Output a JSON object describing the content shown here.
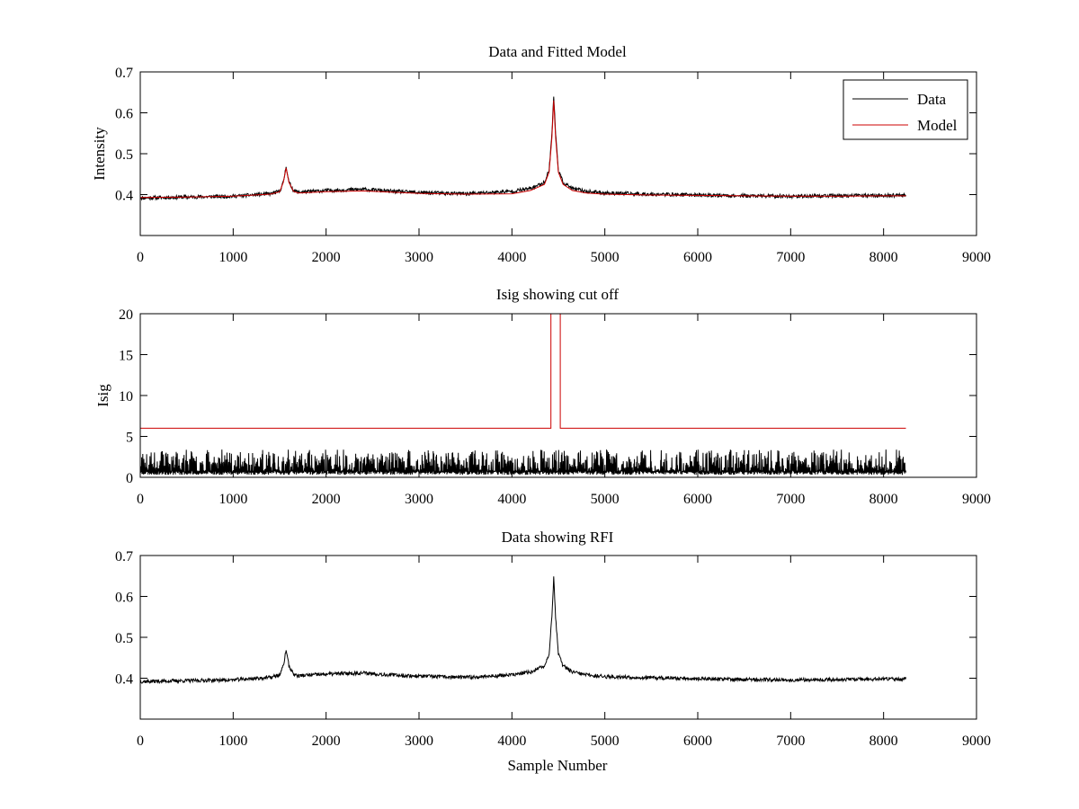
{
  "chart_data": [
    {
      "type": "line",
      "title": "Data and Fitted Model",
      "xlabel": "",
      "ylabel": "Intensity",
      "xlim": [
        0,
        9000
      ],
      "ylim": [
        0.3,
        0.7
      ],
      "x_ticks": [
        "0",
        "1000",
        "2000",
        "3000",
        "4000",
        "5000",
        "6000",
        "7000",
        "8000",
        "9000"
      ],
      "y_ticks": [
        "0.4",
        "0.5",
        "0.6",
        "0.7"
      ],
      "x_tick_values": [
        0,
        1000,
        2000,
        3000,
        4000,
        5000,
        6000,
        7000,
        8000,
        9000
      ],
      "y_tick_values": [
        0.4,
        0.5,
        0.6,
        0.7
      ],
      "legend": {
        "position": "top-right",
        "entries": [
          "Data",
          "Model"
        ]
      },
      "series": [
        {
          "name": "Data",
          "color": "#000000",
          "noisy": true,
          "noise": 0.0045,
          "seed": 11,
          "x": [
            0,
            500,
            1000,
            1400,
            1500,
            1540,
            1570,
            1600,
            1650,
            1700,
            2000,
            2400,
            2700,
            3000,
            3500,
            4000,
            4200,
            4350,
            4400,
            4430,
            4450,
            4470,
            4500,
            4550,
            4650,
            4800,
            5000,
            5500,
            6000,
            6500,
            7000,
            7500,
            8000,
            8240
          ],
          "y": [
            0.392,
            0.394,
            0.396,
            0.402,
            0.408,
            0.43,
            0.47,
            0.43,
            0.41,
            0.406,
            0.41,
            0.413,
            0.408,
            0.405,
            0.402,
            0.408,
            0.415,
            0.43,
            0.46,
            0.55,
            0.64,
            0.55,
            0.46,
            0.43,
            0.415,
            0.408,
            0.404,
            0.401,
            0.399,
            0.397,
            0.396,
            0.397,
            0.398,
            0.398
          ]
        },
        {
          "name": "Model",
          "color": "#cc0000",
          "noisy": false,
          "x": [
            0,
            500,
            1000,
            1400,
            1500,
            1540,
            1570,
            1600,
            1650,
            1700,
            2000,
            2400,
            2700,
            3000,
            3500,
            4000,
            4200,
            4350,
            4400,
            4430,
            4450,
            4470,
            4500,
            4550,
            4650,
            4800,
            5000,
            5500,
            6000,
            6500,
            7000,
            7500,
            8000,
            8240
          ],
          "y": [
            0.393,
            0.394,
            0.396,
            0.401,
            0.407,
            0.43,
            0.465,
            0.43,
            0.408,
            0.404,
            0.407,
            0.409,
            0.406,
            0.403,
            0.401,
            0.402,
            0.41,
            0.425,
            0.455,
            0.54,
            0.63,
            0.54,
            0.455,
            0.425,
            0.41,
            0.404,
            0.401,
            0.399,
            0.398,
            0.397,
            0.396,
            0.396,
            0.397,
            0.397
          ]
        }
      ]
    },
    {
      "type": "line",
      "title": "Isig showing cut off",
      "xlabel": "",
      "ylabel": "Isig",
      "xlim": [
        0,
        9000
      ],
      "ylim": [
        0,
        20
      ],
      "x_ticks": [
        "0",
        "1000",
        "2000",
        "3000",
        "4000",
        "5000",
        "6000",
        "7000",
        "8000",
        "9000"
      ],
      "y_ticks": [
        "0",
        "5",
        "10",
        "15",
        "20"
      ],
      "x_tick_values": [
        0,
        1000,
        2000,
        3000,
        4000,
        5000,
        6000,
        7000,
        8000,
        9000
      ],
      "y_tick_values": [
        0,
        5,
        10,
        15,
        20
      ],
      "series": [
        {
          "name": "Isig",
          "color": "#000000",
          "noisy": true,
          "band": [
            0.3,
            3.0
          ],
          "seed": 23,
          "x": [
            0,
            8240
          ],
          "y": [
            1.0,
            1.0
          ]
        },
        {
          "name": "Cut off",
          "color": "#cc0000",
          "noisy": false,
          "x": [
            0,
            4420,
            4420,
            4520,
            4520,
            8240
          ],
          "y": [
            6,
            6,
            20,
            20,
            6,
            6
          ]
        }
      ]
    },
    {
      "type": "line",
      "title": "Data showing RFI",
      "xlabel": "Sample Number",
      "ylabel": "",
      "xlim": [
        0,
        9000
      ],
      "ylim": [
        0.3,
        0.7
      ],
      "x_ticks": [
        "0",
        "1000",
        "2000",
        "3000",
        "4000",
        "5000",
        "6000",
        "7000",
        "8000",
        "9000"
      ],
      "y_ticks": [
        "0.4",
        "0.5",
        "0.6",
        "0.7"
      ],
      "x_tick_values": [
        0,
        1000,
        2000,
        3000,
        4000,
        5000,
        6000,
        7000,
        8000,
        9000
      ],
      "y_tick_values": [
        0.4,
        0.5,
        0.6,
        0.7
      ],
      "series": [
        {
          "name": "Data",
          "color": "#000000",
          "noisy": true,
          "noise": 0.0045,
          "seed": 37,
          "x": [
            0,
            500,
            1000,
            1400,
            1500,
            1540,
            1570,
            1600,
            1650,
            1700,
            2000,
            2400,
            2700,
            3000,
            3500,
            4000,
            4200,
            4350,
            4400,
            4430,
            4450,
            4470,
            4500,
            4550,
            4650,
            4800,
            5000,
            5500,
            6000,
            6500,
            7000,
            7500,
            8000,
            8240
          ],
          "y": [
            0.392,
            0.394,
            0.396,
            0.402,
            0.408,
            0.43,
            0.47,
            0.43,
            0.41,
            0.406,
            0.41,
            0.413,
            0.408,
            0.405,
            0.402,
            0.408,
            0.415,
            0.43,
            0.46,
            0.55,
            0.645,
            0.55,
            0.46,
            0.43,
            0.415,
            0.408,
            0.404,
            0.401,
            0.399,
            0.397,
            0.396,
            0.397,
            0.398,
            0.398
          ]
        }
      ]
    }
  ]
}
